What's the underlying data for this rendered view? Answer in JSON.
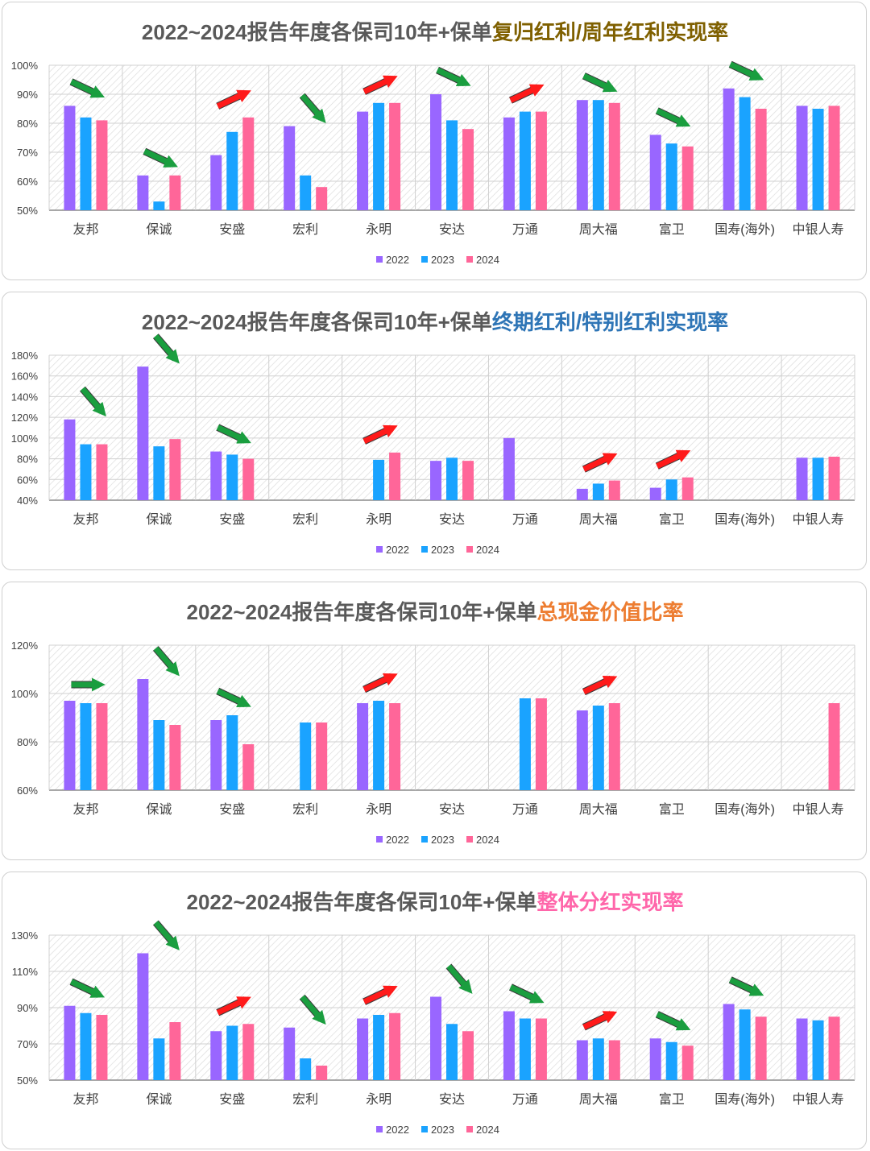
{
  "colors": {
    "2022": "#9966ff",
    "2023": "#1aa3ff",
    "2024": "#ff6699",
    "up_arrow": "#ff1a1a",
    "down_arrow": "#1a9e3f"
  },
  "categories": [
    "友邦",
    "保诚",
    "安盛",
    "宏利",
    "永明",
    "安达",
    "万通",
    "周大福",
    "富卫",
    "国寿(海外)",
    "中银人寿"
  ],
  "legend": [
    "2022",
    "2023",
    "2024"
  ],
  "chart_data": [
    {
      "type": "bar",
      "title": "2022~2024报告年度各保司10年+保单复归红利/周年红利实现率",
      "title_prefix": "2022~2024报告年度各保司10年+保单",
      "title_highlight": "复归红利/周年红利实现率",
      "highlight_color": "#7f6000",
      "ylim": [
        50,
        100
      ],
      "yticks": [
        "50%",
        "60%",
        "70%",
        "80%",
        "90%",
        "100%"
      ],
      "categories": [
        "友邦",
        "保诚",
        "安盛",
        "宏利",
        "永明",
        "安达",
        "万通",
        "周大福",
        "富卫",
        "国寿(海外)",
        "中银人寿"
      ],
      "series": [
        {
          "name": "2022",
          "values": [
            86,
            62,
            69,
            79,
            84,
            90,
            82,
            88,
            76,
            92,
            86
          ]
        },
        {
          "name": "2023",
          "values": [
            82,
            53,
            77,
            62,
            87,
            81,
            84,
            88,
            73,
            89,
            85
          ]
        },
        {
          "name": "2024",
          "values": [
            81,
            62,
            82,
            58,
            87,
            78,
            84,
            87,
            72,
            85,
            86
          ]
        }
      ],
      "trend_arrows": [
        "down",
        "down",
        "up",
        "down",
        "up",
        "down",
        "up",
        "down",
        "down",
        "down",
        null
      ]
    },
    {
      "type": "bar",
      "title": "2022~2024报告年度各保司10年+保单终期红利/特别红利实现率",
      "title_prefix": "2022~2024报告年度各保司10年+保单",
      "title_highlight": "终期红利/特别红利实现率",
      "highlight_color": "#2e75b6",
      "ylim": [
        40,
        180
      ],
      "yticks": [
        "40%",
        "60%",
        "80%",
        "100%",
        "120%",
        "140%",
        "160%",
        "180%"
      ],
      "categories": [
        "友邦",
        "保诚",
        "安盛",
        "宏利",
        "永明",
        "安达",
        "万通",
        "周大福",
        "富卫",
        "国寿(海外)",
        "中银人寿"
      ],
      "series": [
        {
          "name": "2022",
          "values": [
            118,
            169,
            87,
            null,
            null,
            78,
            100,
            51,
            52,
            null,
            81
          ]
        },
        {
          "name": "2023",
          "values": [
            94,
            92,
            84,
            null,
            79,
            81,
            null,
            56,
            60,
            null,
            81
          ]
        },
        {
          "name": "2024",
          "values": [
            94,
            99,
            80,
            null,
            86,
            78,
            null,
            59,
            62,
            null,
            82
          ]
        }
      ],
      "trend_arrows": [
        "down",
        "down",
        "down",
        null,
        "up",
        null,
        null,
        "up",
        "up",
        null,
        null
      ]
    },
    {
      "type": "bar",
      "title": "2022~2024报告年度各保司10年+保单总现金价值比率",
      "title_prefix": "2022~2024报告年度各保司10年+保单",
      "title_highlight": "总现金价值比率",
      "highlight_color": "#ed7d31",
      "ylim": [
        60,
        120
      ],
      "yticks": [
        "60%",
        "80%",
        "100%",
        "120%"
      ],
      "categories": [
        "友邦",
        "保诚",
        "安盛",
        "宏利",
        "永明",
        "安达",
        "万通",
        "周大福",
        "富卫",
        "国寿(海外)",
        "中银人寿"
      ],
      "series": [
        {
          "name": "2022",
          "values": [
            97,
            106,
            89,
            null,
            96,
            null,
            null,
            93,
            null,
            null,
            null
          ]
        },
        {
          "name": "2023",
          "values": [
            96,
            89,
            91,
            88,
            97,
            null,
            98,
            95,
            null,
            null,
            null
          ]
        },
        {
          "name": "2024",
          "values": [
            96,
            87,
            79,
            88,
            96,
            null,
            98,
            96,
            null,
            null,
            96
          ]
        }
      ],
      "trend_arrows": [
        "flat",
        "down",
        "down",
        null,
        "up",
        null,
        null,
        "up",
        null,
        null,
        null
      ]
    },
    {
      "type": "bar",
      "title": "2022~2024报告年度各保司10年+保单整体分红实现率",
      "title_prefix": "2022~2024报告年度各保司10年+保单",
      "title_highlight": "整体分红实现率",
      "highlight_color": "#ff66aa",
      "ylim": [
        50,
        130
      ],
      "yticks": [
        "50%",
        "70%",
        "90%",
        "110%",
        "130%"
      ],
      "categories": [
        "友邦",
        "保诚",
        "安盛",
        "宏利",
        "永明",
        "安达",
        "万通",
        "周大福",
        "富卫",
        "国寿(海外)",
        "中银人寿"
      ],
      "series": [
        {
          "name": "2022",
          "values": [
            91,
            120,
            77,
            79,
            84,
            96,
            88,
            72,
            73,
            92,
            84
          ]
        },
        {
          "name": "2023",
          "values": [
            87,
            73,
            80,
            62,
            86,
            81,
            84,
            73,
            71,
            89,
            83
          ]
        },
        {
          "name": "2024",
          "values": [
            86,
            82,
            81,
            58,
            87,
            77,
            84,
            72,
            69,
            85,
            85
          ]
        }
      ],
      "trend_arrows": [
        "down",
        "down",
        "up",
        "down",
        "up",
        "down",
        "down",
        "up",
        "down",
        "down",
        null
      ]
    }
  ]
}
